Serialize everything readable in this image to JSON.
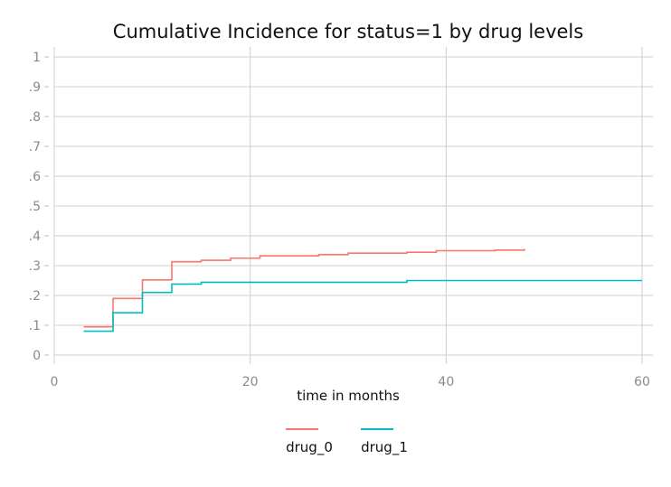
{
  "chart_data": {
    "type": "line",
    "title": "Cumulative Incidence for status=1 by drug levels",
    "xlabel": "time in months",
    "ylabel": "",
    "xlim": [
      0,
      60
    ],
    "ylim": [
      0,
      1
    ],
    "x_ticks": [
      {
        "value": 0,
        "label": "0"
      },
      {
        "value": 20,
        "label": "20"
      },
      {
        "value": 40,
        "label": "40"
      },
      {
        "value": 60,
        "label": "60"
      }
    ],
    "y_ticks": [
      {
        "value": 0,
        "label": "0"
      },
      {
        "value": 0.1,
        "label": ".1"
      },
      {
        "value": 0.2,
        "label": ".2"
      },
      {
        "value": 0.3,
        "label": ".3"
      },
      {
        "value": 0.4,
        "label": ".4"
      },
      {
        "value": 0.5,
        "label": ".5"
      },
      {
        "value": 0.6,
        "label": ".6"
      },
      {
        "value": 0.7,
        "label": ".7"
      },
      {
        "value": 0.8,
        "label": ".8"
      },
      {
        "value": 0.9,
        "label": ".9"
      },
      {
        "value": 1,
        "label": "1"
      }
    ],
    "grid": true,
    "legend_position": "bottom",
    "step": true,
    "series": [
      {
        "name": "drug_0",
        "color": "#f8766d",
        "x": [
          3,
          6,
          9,
          12,
          15,
          18,
          21,
          27,
          30,
          36,
          39,
          45,
          48
        ],
        "y": [
          0.095,
          0.19,
          0.252,
          0.313,
          0.318,
          0.325,
          0.333,
          0.337,
          0.342,
          0.345,
          0.35,
          0.352,
          0.356
        ]
      },
      {
        "name": "drug_1",
        "color": "#00bfc4",
        "x": [
          3,
          6,
          9,
          12,
          15,
          36,
          60
        ],
        "y": [
          0.08,
          0.142,
          0.21,
          0.238,
          0.244,
          0.25,
          0.25
        ]
      }
    ]
  }
}
